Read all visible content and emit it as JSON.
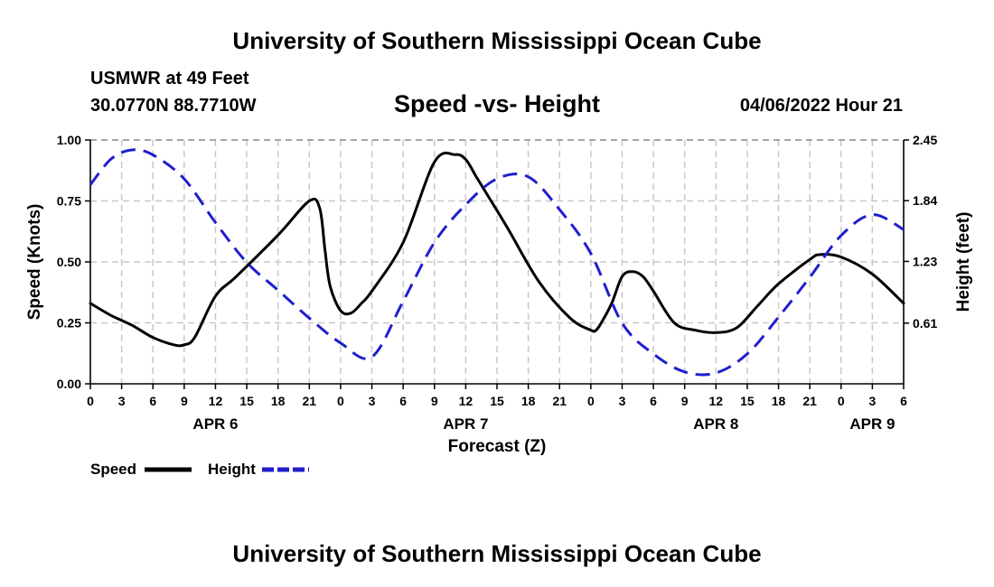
{
  "header": {
    "title": "University of Southern Mississippi Ocean Cube",
    "station": "USMWR at 49 Feet",
    "coords": "30.0770N  88.7710W",
    "chart_title": "Speed -vs- Height",
    "datetime": "04/06/2022 Hour 21"
  },
  "footer": {
    "title": "University of Southern Mississippi Ocean Cube"
  },
  "chart_data": {
    "type": "line",
    "title": "Speed -vs- Height",
    "xlabel": "Forecast (Z)",
    "ylabel": "Speed (Knots)",
    "y2label": "Height (feet)",
    "ylim": [
      0,
      1.0
    ],
    "y2lim": [
      0,
      2.45
    ],
    "yticks": [
      "0.00",
      "0.25",
      "0.50",
      "0.75",
      "1.00"
    ],
    "y2ticks": [
      "0.61",
      "1.23",
      "1.84",
      "2.45"
    ],
    "x_hours_range": [
      0,
      78
    ],
    "x_tick_labels": [
      "0",
      "3",
      "6",
      "9",
      "12",
      "15",
      "18",
      "21",
      "0",
      "3",
      "6",
      "9",
      "12",
      "15",
      "18",
      "21",
      "0",
      "3",
      "6",
      "9",
      "12",
      "15",
      "18",
      "21",
      "0",
      "3",
      "6"
    ],
    "date_labels": [
      {
        "label": "APR 6",
        "hour": 12
      },
      {
        "label": "APR 7",
        "hour": 36
      },
      {
        "label": "APR 8",
        "hour": 60
      },
      {
        "label": "APR 9",
        "hour": 75
      }
    ],
    "grid": true,
    "legend_placement": "bottom-left",
    "series": [
      {
        "name": "Speed",
        "axis": "left",
        "color": "#000000",
        "dash": "solid",
        "x": [
          0,
          2,
          4,
          6,
          8,
          9,
          10,
          12,
          14,
          18,
          21,
          22,
          22.5,
          23,
          24,
          25,
          26,
          27,
          30,
          33,
          35,
          36,
          37,
          38,
          40,
          43,
          46,
          48,
          48.5,
          49,
          50,
          51,
          52,
          53,
          54,
          56,
          58,
          60,
          62,
          64,
          66,
          69,
          70,
          72,
          75,
          78
        ],
        "values": [
          0.33,
          0.28,
          0.24,
          0.19,
          0.16,
          0.16,
          0.19,
          0.36,
          0.44,
          0.61,
          0.75,
          0.72,
          0.55,
          0.4,
          0.3,
          0.29,
          0.33,
          0.38,
          0.58,
          0.91,
          0.94,
          0.92,
          0.85,
          0.78,
          0.64,
          0.42,
          0.27,
          0.22,
          0.22,
          0.25,
          0.33,
          0.44,
          0.46,
          0.44,
          0.38,
          0.25,
          0.22,
          0.21,
          0.23,
          0.32,
          0.41,
          0.51,
          0.53,
          0.52,
          0.45,
          0.33
        ]
      },
      {
        "name": "Height",
        "axis": "right",
        "color": "#1f1fcc",
        "dash": "dashed",
        "x": [
          0,
          2,
          4,
          6,
          9,
          12,
          15,
          18,
          21,
          24,
          27,
          30,
          33,
          36,
          39,
          42,
          45,
          48,
          51,
          54,
          57,
          60,
          63,
          66,
          69,
          72,
          75,
          78
        ],
        "values": [
          2.0,
          2.26,
          2.35,
          2.3,
          2.06,
          1.62,
          1.22,
          0.94,
          0.66,
          0.41,
          0.27,
          0.83,
          1.42,
          1.8,
          2.06,
          2.08,
          1.75,
          1.31,
          0.61,
          0.3,
          0.12,
          0.11,
          0.3,
          0.67,
          1.07,
          1.49,
          1.7,
          1.55
        ]
      }
    ]
  }
}
